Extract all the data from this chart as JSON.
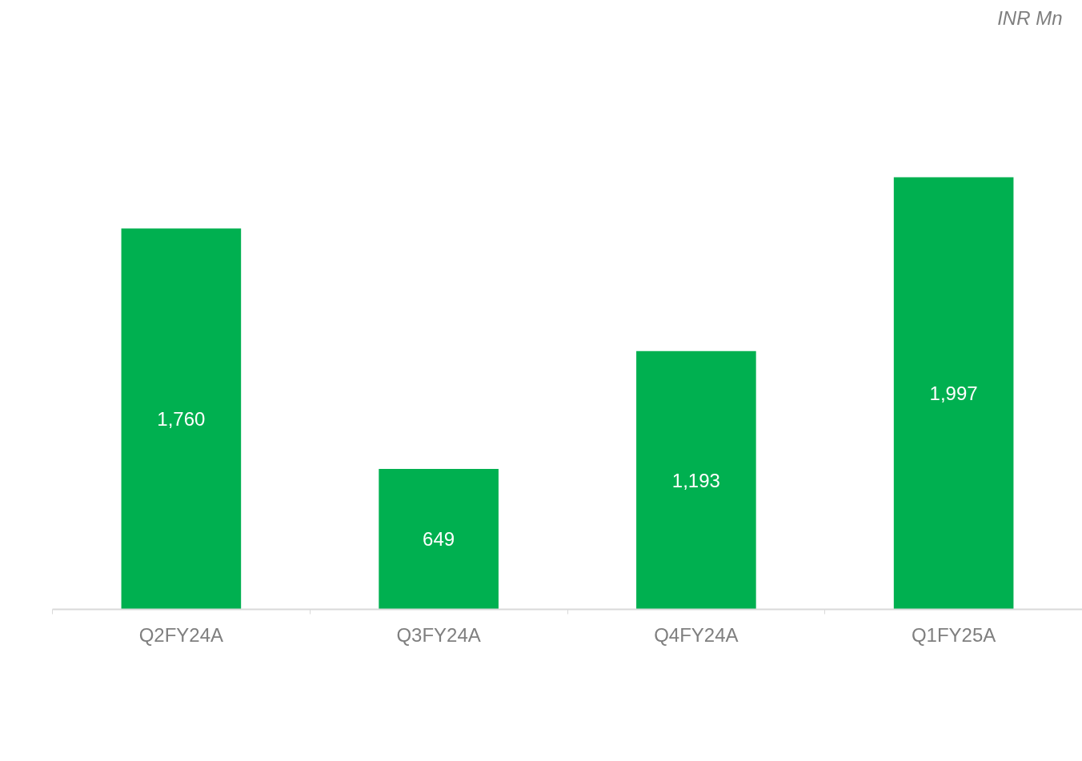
{
  "chart_data": {
    "type": "bar",
    "categories": [
      "Q2FY24A",
      "Q3FY24A",
      "Q4FY24A",
      "Q1FY25A"
    ],
    "values": [
      1760,
      649,
      1193,
      1997
    ],
    "color": "#00b050",
    "value_labels": [
      "1,760",
      "649",
      "1,193",
      "1,997"
    ],
    "tick_labels": "x",
    "annotations": [
      "INR Mn"
    ]
  }
}
